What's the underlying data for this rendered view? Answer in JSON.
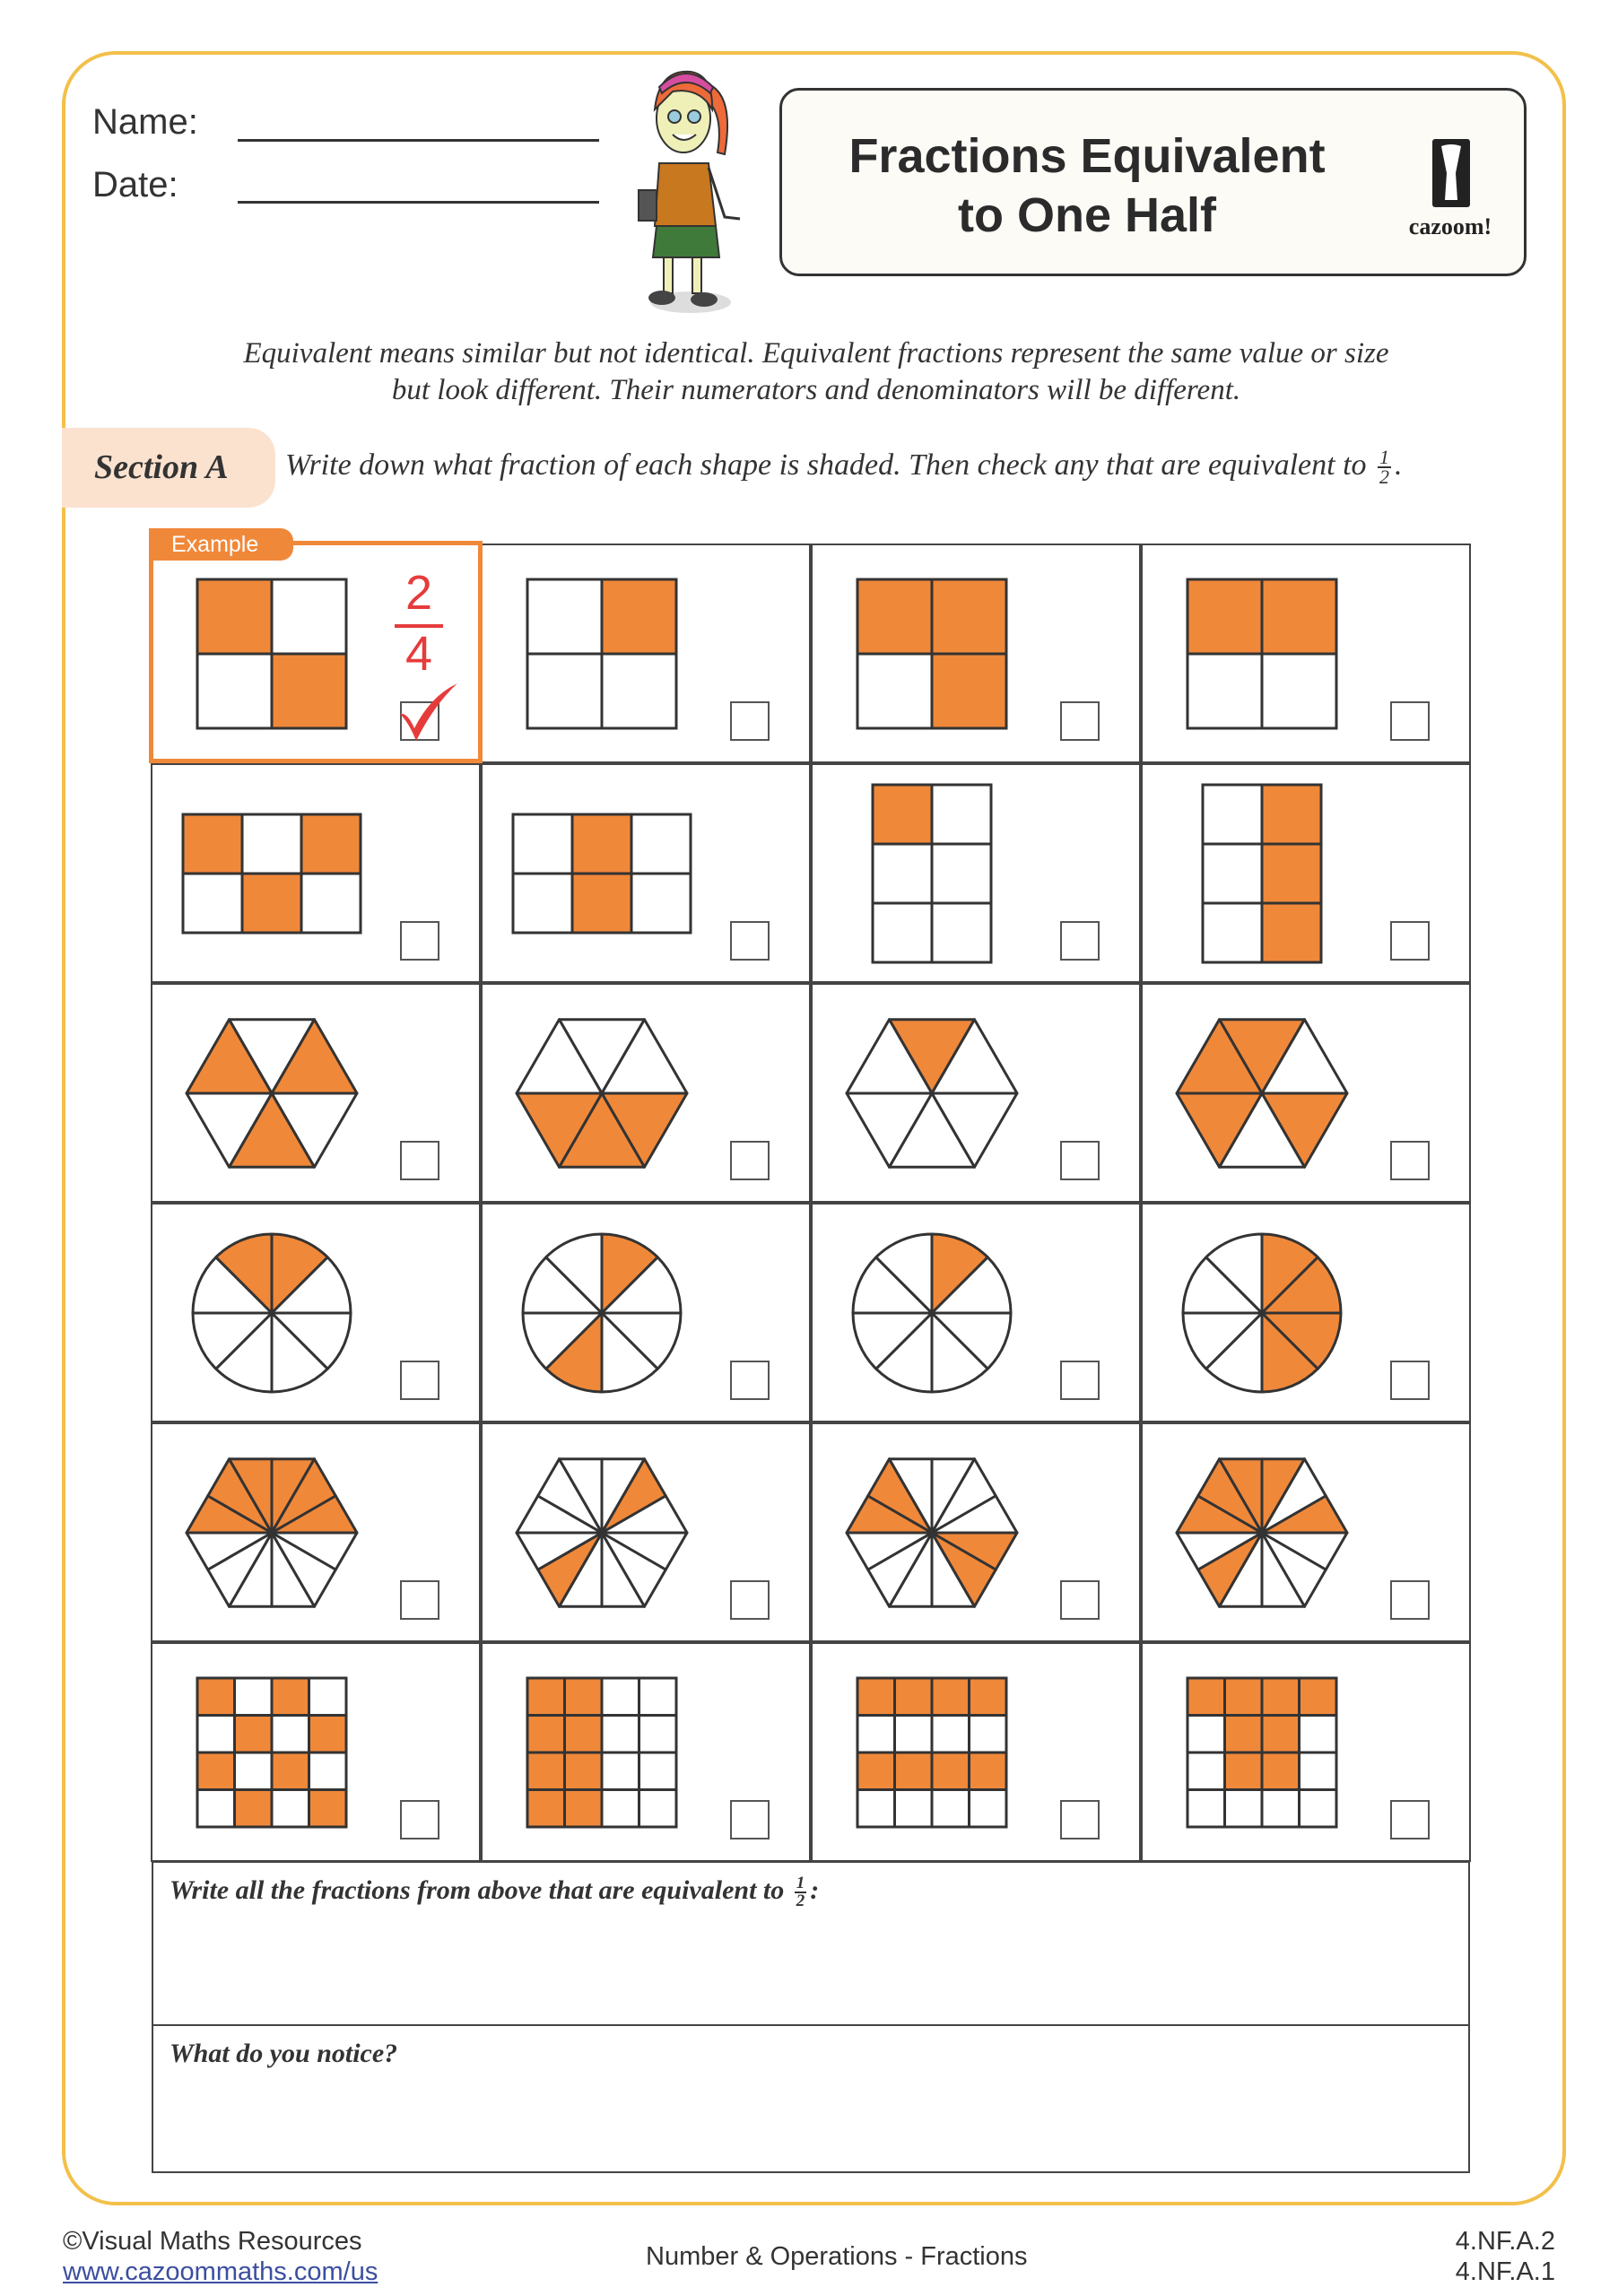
{
  "header": {
    "name_label": "Name:",
    "date_label": "Date:",
    "title_line1": "Fractions Equivalent",
    "title_line2": "to One Half",
    "logo_text": "cazoom!"
  },
  "intro": {
    "line1": "Equivalent means similar but not identical. Equivalent fractions represent the same value or size",
    "line2": "but look different. Their numerators and denominators will be different."
  },
  "section": {
    "label": "Section A",
    "instruction": "Write down what fraction of each shape is shaded. Then check any that are equivalent to",
    "half_numerator": "1",
    "half_denominator": "2",
    "instruction_end": "."
  },
  "example": {
    "tab_label": "Example",
    "numerator": "2",
    "denominator": "4",
    "checked": true
  },
  "colors": {
    "shade": "#f0883a",
    "accent": "#f0883a",
    "mark": "#e63b3b",
    "frame": "#f2c04a",
    "pill": "#fbe2cf"
  },
  "grid": {
    "rows": [
      [
        {
          "shape": "grid",
          "cols": 2,
          "rows": 2,
          "shaded": [
            0,
            3
          ]
        },
        {
          "shape": "grid",
          "cols": 2,
          "rows": 2,
          "shaded": [
            1
          ]
        },
        {
          "shape": "grid",
          "cols": 2,
          "rows": 2,
          "shaded": [
            0,
            1,
            3
          ]
        },
        {
          "shape": "grid",
          "cols": 2,
          "rows": 2,
          "shaded": [
            0,
            1
          ]
        }
      ],
      [
        {
          "shape": "grid",
          "cols": 3,
          "rows": 2,
          "shaded": [
            0,
            2,
            4
          ]
        },
        {
          "shape": "grid",
          "cols": 3,
          "rows": 2,
          "shaded": [
            1,
            4
          ]
        },
        {
          "shape": "grid",
          "cols": 2,
          "rows": 3,
          "shaded": [
            0
          ]
        },
        {
          "shape": "grid",
          "cols": 2,
          "rows": 3,
          "shaded": [
            1,
            3,
            5
          ]
        }
      ],
      [
        {
          "shape": "hex6",
          "shaded": [
            1,
            3,
            5
          ]
        },
        {
          "shape": "hex6",
          "shaded": [
            2,
            3,
            4
          ]
        },
        {
          "shape": "hex6",
          "shaded": [
            0
          ]
        },
        {
          "shape": "hex6",
          "shaded": [
            0,
            2,
            4,
            5
          ]
        }
      ],
      [
        {
          "shape": "circle8",
          "shaded": [
            7,
            0
          ]
        },
        {
          "shape": "circle8",
          "shaded": [
            0,
            4
          ]
        },
        {
          "shape": "circle8",
          "shaded": [
            0
          ]
        },
        {
          "shape": "circle8",
          "shaded": [
            0,
            1,
            2,
            3
          ]
        }
      ],
      [
        {
          "shape": "hex12",
          "shaded": [
            9,
            10,
            11,
            0,
            1,
            2
          ]
        },
        {
          "shape": "hex12",
          "shaded": [
            1,
            7
          ]
        },
        {
          "shape": "hex12",
          "shaded": [
            9,
            10,
            3,
            4
          ]
        },
        {
          "shape": "hex12",
          "shaded": [
            9,
            10,
            11,
            0,
            2,
            7
          ]
        }
      ],
      [
        {
          "shape": "grid",
          "cols": 4,
          "rows": 4,
          "shaded": [
            0,
            2,
            5,
            7,
            8,
            10,
            13,
            15
          ]
        },
        {
          "shape": "grid",
          "cols": 4,
          "rows": 4,
          "shaded": [
            0,
            1,
            4,
            5,
            8,
            9,
            12,
            13
          ]
        },
        {
          "shape": "grid",
          "cols": 4,
          "rows": 4,
          "shaded": [
            0,
            1,
            2,
            3,
            8,
            9,
            10,
            11
          ]
        },
        {
          "shape": "grid",
          "cols": 4,
          "rows": 4,
          "shaded": [
            0,
            1,
            2,
            3,
            5,
            6,
            9,
            10
          ]
        }
      ]
    ]
  },
  "answers": {
    "equivalent_prompt": "Write all the fractions from above that are equivalent to",
    "equivalent_num": "1",
    "equivalent_den": "2",
    "equivalent_end": ":",
    "notice_prompt": "What do you notice?"
  },
  "footer": {
    "copyright": "©Visual Maths Resources",
    "link": "www.cazoommaths.com/us",
    "topic": "Number & Operations - Fractions",
    "standard1": "4.NF.A.2",
    "standard2": "4.NF.A.1"
  }
}
